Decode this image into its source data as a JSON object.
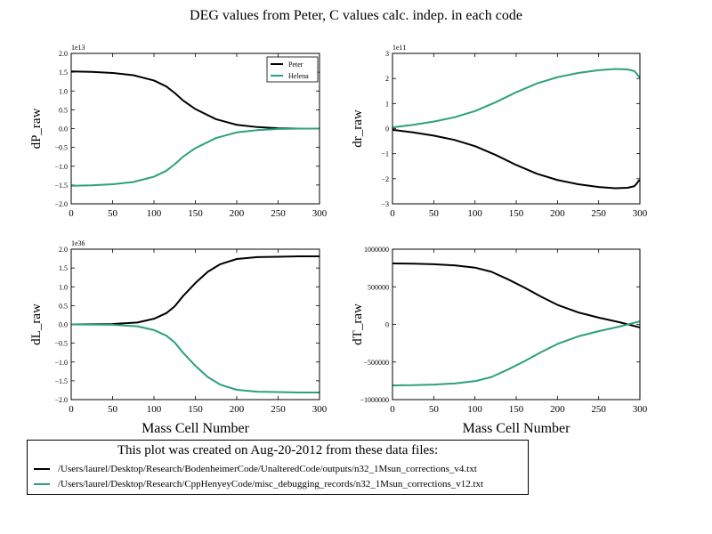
{
  "figure": {
    "suptitle": "DEG values from Peter, C values calc. indep. in each code",
    "series_colors": {
      "Peter": "#000000",
      "Helena": "#2ca07f"
    }
  },
  "footer": {
    "title": "This plot was created on Aug-20-2012 from these data files:",
    "files": [
      {
        "label": "/Users/laurel/Desktop/Research/BodenheimerCode/UnalteredCode/outputs/n32_1Msun_corrections_v4.txt",
        "color": "#000000"
      },
      {
        "label": "/Users/laurel/Desktop/Research/CppHenyeyCode/misc_debugging_records/n32_1Msun_corrections_v12.txt",
        "color": "#2ca07f"
      }
    ]
  },
  "chart_data": [
    {
      "type": "line",
      "ylabel": "dP_raw",
      "xlabel": "",
      "offset_label": "1e13",
      "xlim": [
        0,
        300
      ],
      "ylim": [
        -2.0,
        2.0
      ],
      "xticks": [
        0,
        50,
        100,
        150,
        200,
        250,
        300
      ],
      "yticks": [
        -2.0,
        -1.5,
        -1.0,
        -0.5,
        0.0,
        0.5,
        1.0,
        1.5,
        2.0
      ],
      "ytick_labels": [
        "−2.0",
        "−1.5",
        "−1.0",
        "−0.5",
        "0.0",
        "0.5",
        "1.0",
        "1.5",
        "2.0"
      ],
      "legend": {
        "loc": "top-right",
        "entries": [
          "Peter",
          "Helena"
        ]
      },
      "series": [
        {
          "name": "Peter",
          "color": "#000000",
          "x": [
            0,
            25,
            50,
            75,
            100,
            115,
            125,
            135,
            150,
            175,
            200,
            225,
            250,
            275,
            300
          ],
          "y": [
            1.52,
            1.51,
            1.48,
            1.42,
            1.28,
            1.12,
            0.95,
            0.75,
            0.52,
            0.25,
            0.1,
            0.04,
            0.01,
            0.0,
            0.0
          ]
        },
        {
          "name": "Helena",
          "color": "#2ca07f",
          "x": [
            0,
            25,
            50,
            75,
            100,
            115,
            125,
            135,
            150,
            175,
            200,
            225,
            250,
            275,
            300
          ],
          "y": [
            -1.52,
            -1.51,
            -1.48,
            -1.42,
            -1.28,
            -1.12,
            -0.95,
            -0.75,
            -0.52,
            -0.25,
            -0.1,
            -0.04,
            -0.01,
            0.0,
            0.0
          ]
        }
      ]
    },
    {
      "type": "line",
      "ylabel": "dr_raw",
      "xlabel": "",
      "offset_label": "1e11",
      "xlim": [
        0,
        300
      ],
      "ylim": [
        -3,
        3
      ],
      "xticks": [
        0,
        50,
        100,
        150,
        200,
        250,
        300
      ],
      "yticks": [
        -3,
        -2,
        -1,
        0,
        1,
        2,
        3
      ],
      "ytick_labels": [
        "−3",
        "−2",
        "−1",
        "0",
        "1",
        "2",
        "3"
      ],
      "series": [
        {
          "name": "Peter",
          "color": "#000000",
          "x": [
            0,
            25,
            50,
            75,
            100,
            125,
            150,
            175,
            200,
            225,
            250,
            270,
            285,
            293,
            296,
            298,
            300
          ],
          "y": [
            -0.05,
            -0.15,
            -0.28,
            -0.45,
            -0.7,
            -1.05,
            -1.45,
            -1.8,
            -2.05,
            -2.22,
            -2.33,
            -2.38,
            -2.36,
            -2.3,
            -2.2,
            -2.1,
            -2.05
          ]
        },
        {
          "name": "Helena",
          "color": "#2ca07f",
          "x": [
            0,
            25,
            50,
            75,
            100,
            125,
            150,
            175,
            200,
            225,
            250,
            270,
            285,
            293,
            296,
            298,
            300
          ],
          "y": [
            0.05,
            0.15,
            0.28,
            0.45,
            0.7,
            1.05,
            1.45,
            1.8,
            2.05,
            2.22,
            2.33,
            2.38,
            2.36,
            2.3,
            2.2,
            2.1,
            2.05
          ]
        }
      ]
    },
    {
      "type": "line",
      "ylabel": "dL_raw",
      "xlabel": "Mass Cell Number",
      "offset_label": "1e36",
      "xlim": [
        0,
        300
      ],
      "ylim": [
        -2.0,
        2.0
      ],
      "xticks": [
        0,
        50,
        100,
        150,
        200,
        250,
        300
      ],
      "yticks": [
        -2.0,
        -1.5,
        -1.0,
        -0.5,
        0.0,
        0.5,
        1.0,
        1.5,
        2.0
      ],
      "ytick_labels": [
        "−2.0",
        "−1.5",
        "−1.0",
        "−0.5",
        "0.0",
        "0.5",
        "1.0",
        "1.5",
        "2.0"
      ],
      "series": [
        {
          "name": "Peter",
          "color": "#000000",
          "x": [
            0,
            50,
            80,
            100,
            115,
            125,
            135,
            150,
            165,
            180,
            200,
            225,
            250,
            275,
            300
          ],
          "y": [
            0.0,
            0.01,
            0.05,
            0.15,
            0.3,
            0.48,
            0.75,
            1.1,
            1.4,
            1.6,
            1.74,
            1.79,
            1.8,
            1.81,
            1.81
          ]
        },
        {
          "name": "Helena",
          "color": "#2ca07f",
          "x": [
            0,
            50,
            80,
            100,
            115,
            125,
            135,
            150,
            165,
            180,
            200,
            225,
            250,
            275,
            300
          ],
          "y": [
            0.0,
            -0.01,
            -0.05,
            -0.15,
            -0.3,
            -0.48,
            -0.75,
            -1.1,
            -1.4,
            -1.6,
            -1.74,
            -1.79,
            -1.8,
            -1.81,
            -1.81
          ]
        }
      ]
    },
    {
      "type": "line",
      "ylabel": "dT_raw",
      "xlabel": "Mass Cell Number",
      "offset_label": "",
      "xlim": [
        0,
        300
      ],
      "ylim": [
        -1000000,
        1000000
      ],
      "xticks": [
        0,
        50,
        100,
        150,
        200,
        250,
        300
      ],
      "yticks": [
        -1000000,
        -500000,
        0,
        500000,
        1000000
      ],
      "ytick_labels": [
        "−1000000",
        "−500000",
        "0",
        "500000",
        "1000000"
      ],
      "series": [
        {
          "name": "Peter",
          "color": "#000000",
          "x": [
            0,
            25,
            50,
            75,
            100,
            120,
            140,
            160,
            180,
            200,
            225,
            250,
            275,
            300
          ],
          "y": [
            810000,
            808000,
            800000,
            785000,
            755000,
            700000,
            600000,
            490000,
            370000,
            260000,
            160000,
            90000,
            30000,
            -40000
          ]
        },
        {
          "name": "Helena",
          "color": "#2ca07f",
          "x": [
            0,
            25,
            50,
            75,
            100,
            120,
            140,
            160,
            180,
            200,
            225,
            250,
            275,
            300
          ],
          "y": [
            -810000,
            -808000,
            -800000,
            -785000,
            -755000,
            -700000,
            -600000,
            -490000,
            -370000,
            -260000,
            -160000,
            -90000,
            -30000,
            40000
          ]
        }
      ]
    }
  ]
}
